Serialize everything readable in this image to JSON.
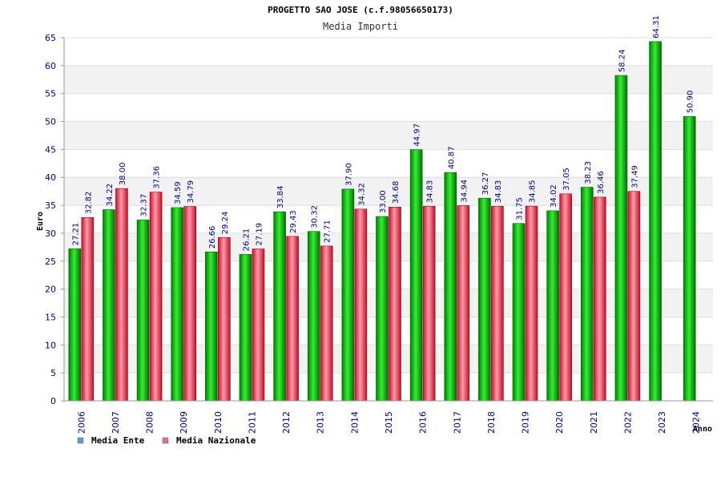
{
  "chart_data": {
    "type": "bar",
    "title": "PROGETTO SAO JOSE (c.f.98056650173)",
    "subtitle": "Media Importi",
    "xlabel": "Anno",
    "ylabel": "Euro",
    "ylim": [
      0,
      65
    ],
    "yticks": [
      "0",
      "5",
      "10",
      "15",
      "20",
      "25",
      "30",
      "35",
      "40",
      "45",
      "50",
      "55",
      "60",
      "65"
    ],
    "categories": [
      "2006",
      "2007",
      "2008",
      "2009",
      "2010",
      "2011",
      "2012",
      "2013",
      "2014",
      "2015",
      "2016",
      "2017",
      "2018",
      "2019",
      "2020",
      "2021",
      "2022",
      "2023",
      "2024"
    ],
    "series": [
      {
        "name": "Media Ente",
        "color": "#00b000",
        "legend_color": "#5b9bd5",
        "values": [
          27.21,
          34.22,
          32.37,
          34.59,
          26.66,
          26.21,
          33.84,
          30.32,
          37.9,
          33.0,
          44.97,
          40.87,
          36.27,
          31.75,
          34.02,
          38.23,
          58.24,
          64.31,
          50.9
        ],
        "labels": [
          "27.21",
          "34.22",
          "32.37",
          "34.59",
          "26.66",
          "26.21",
          "33.84",
          "30.32",
          "37.90",
          "33.00",
          "44.97",
          "40.87",
          "36.27",
          "31.75",
          "34.02",
          "38.23",
          "58.24",
          "64.31",
          "50.90"
        ]
      },
      {
        "name": "Media Nazionale",
        "color": "#e04050",
        "legend_color": "#e07090",
        "values": [
          32.82,
          38.0,
          37.36,
          34.79,
          29.24,
          27.19,
          29.43,
          27.71,
          34.32,
          34.68,
          34.83,
          34.94,
          34.83,
          34.85,
          37.05,
          36.46,
          37.49,
          null,
          null
        ],
        "labels": [
          "32.82",
          "38.00",
          "37.36",
          "34.79",
          "29.24",
          "27.19",
          "29.43",
          "27.71",
          "34.32",
          "34.68",
          "34.83",
          "34.94",
          "34.83",
          "34.85",
          "37.05",
          "36.46",
          "37.49",
          null,
          null
        ]
      }
    ],
    "grid": true,
    "grid_style": "alternating horizontal bands",
    "legend_position": "bottom-left"
  }
}
